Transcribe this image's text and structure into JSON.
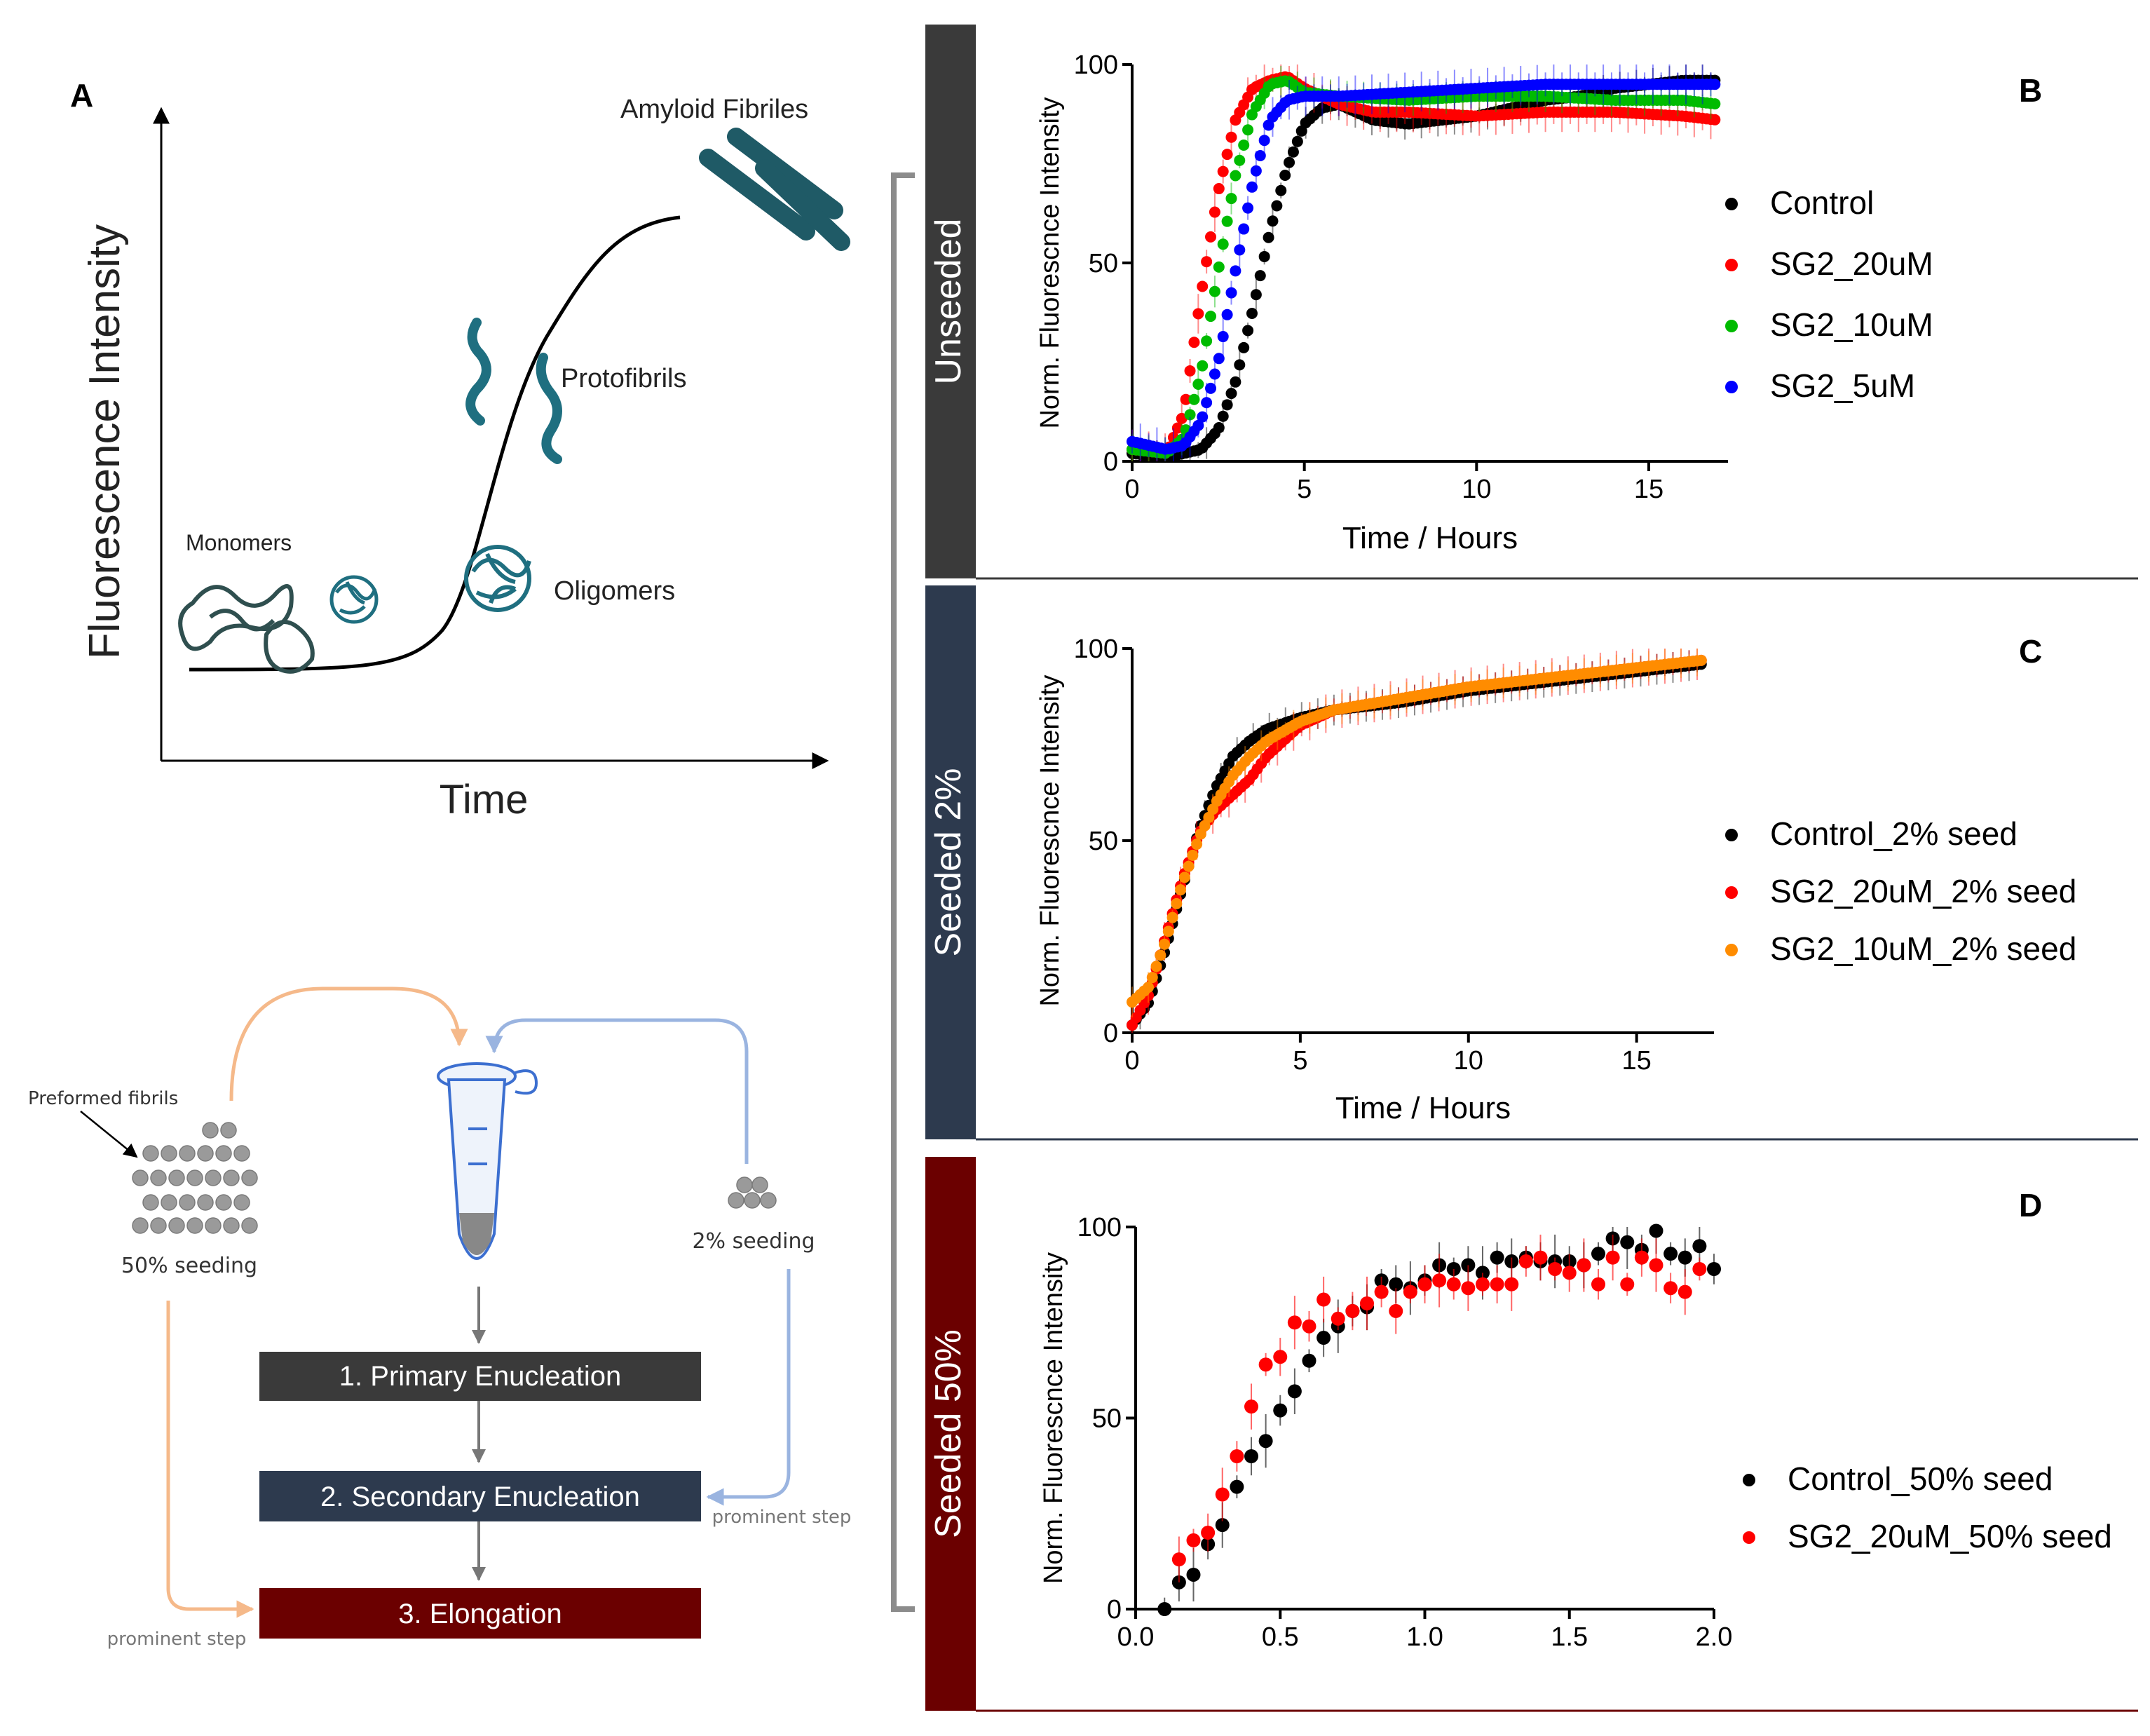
{
  "panels": {
    "A": {
      "letter": "A",
      "ylabel": "Fluorescence Intensity",
      "xlabel": "Time",
      "stages": [
        "Monomers",
        "Oligomers",
        "Protofibrils",
        "Amyloid Fibriles"
      ]
    },
    "B": {
      "letter": "B",
      "band_label": "Unseeded"
    },
    "C": {
      "letter": "C",
      "band_label": "Seeded 2%"
    },
    "D": {
      "letter": "D",
      "band_label": "Seeded 50%"
    }
  },
  "schematic": {
    "preformed_label": "Preformed fibrils",
    "seed50_label": "50% seeding",
    "seed2_label": "2% seeding",
    "steps": [
      "1. Primary Enucleation",
      "2. Secondary Enucleation",
      "3. Elongation"
    ],
    "prominent_label": "prominent step"
  },
  "colors": {
    "unseeded_band": "#3a3a3a",
    "seeded2_band": "#2d3a4e",
    "seeded50_band": "#6b0000",
    "step1": "#3a3a3a",
    "step2": "#2d3a4e",
    "step3": "#6b0000",
    "orange_arrow": "#f5b98a",
    "blue_arrow": "#9ab4e0",
    "teal": "#1f6f80"
  },
  "chart_data": [
    {
      "panel": "B",
      "type": "scatter",
      "xlabel": "Time / Hours",
      "ylabel": "Norm. Fluorescnce Intensity",
      "xlim": [
        0,
        17.3
      ],
      "ylim": [
        0,
        100
      ],
      "xticks": [
        0,
        5,
        10,
        15
      ],
      "yticks": [
        0,
        50,
        100
      ],
      "legend_position": "right",
      "series": [
        {
          "name": "Control",
          "color": "#000000",
          "x": [
            0,
            1,
            2,
            2.5,
            3,
            3.5,
            4,
            4.5,
            5,
            5.5,
            6,
            7,
            8,
            9,
            10,
            11,
            12,
            13,
            14,
            15,
            16,
            17
          ],
          "y": [
            2,
            1,
            3,
            8,
            20,
            38,
            58,
            74,
            85,
            89,
            90,
            86,
            85,
            86,
            87,
            89,
            91,
            92,
            94,
            95,
            96,
            96
          ]
        },
        {
          "name": "SG2_20uM",
          "color": "#ff0000",
          "x": [
            0,
            1,
            1.5,
            2,
            2.5,
            3,
            3.5,
            4,
            4.5,
            5,
            6,
            7,
            8,
            10,
            12,
            14,
            16,
            17
          ],
          "y": [
            3,
            2,
            12,
            42,
            68,
            86,
            94,
            96,
            97,
            94,
            90,
            88,
            88,
            87,
            88,
            88,
            87,
            86
          ]
        },
        {
          "name": "SG2_10uM",
          "color": "#00bb00",
          "x": [
            0,
            1,
            1.5,
            2,
            2.5,
            3,
            3.5,
            4,
            4.5,
            5,
            6,
            8,
            10,
            12,
            14,
            16,
            17
          ],
          "y": [
            3,
            2,
            6,
            22,
            48,
            72,
            88,
            95,
            96,
            93,
            92,
            91,
            92,
            92,
            91,
            91,
            90
          ]
        },
        {
          "name": "SG2_5uM",
          "color": "#0000ff",
          "x": [
            0,
            1,
            1.5,
            2,
            2.5,
            3,
            3.5,
            4,
            4.5,
            5,
            6,
            8,
            10,
            12,
            14,
            16,
            17
          ],
          "y": [
            5,
            3,
            4,
            10,
            25,
            48,
            70,
            86,
            91,
            92,
            92,
            93,
            94,
            95,
            95,
            95,
            95
          ]
        }
      ]
    },
    {
      "panel": "C",
      "type": "scatter",
      "xlabel": "Time / Hours",
      "ylabel": "Norm. Fluorescnce Intensity",
      "xlim": [
        0,
        17.3
      ],
      "ylim": [
        0,
        100
      ],
      "xticks": [
        0,
        5,
        10,
        15
      ],
      "yticks": [
        0,
        50,
        100
      ],
      "legend_position": "right",
      "series": [
        {
          "name": "Control_2% seed",
          "color": "#000000",
          "x": [
            0,
            0.5,
            1,
            1.5,
            2,
            2.5,
            3,
            3.5,
            4,
            5,
            6,
            8,
            10,
            12,
            14,
            16,
            17
          ],
          "y": [
            2,
            8,
            22,
            38,
            53,
            64,
            72,
            76,
            79,
            82,
            84,
            86,
            89,
            91,
            93,
            95,
            96
          ]
        },
        {
          "name": "SG2_20uM_2% seed",
          "color": "#ff0000",
          "x": [
            0,
            0.5,
            1,
            1.5,
            2,
            2.5,
            3,
            3.5,
            4,
            5,
            6,
            8,
            10,
            12,
            14,
            16,
            17
          ],
          "y": [
            2,
            10,
            25,
            40,
            52,
            58,
            62,
            66,
            72,
            80,
            84,
            87,
            90,
            92,
            94,
            96,
            97
          ]
        },
        {
          "name": "SG2_10uM_2% seed",
          "color": "#ff8c00",
          "x": [
            0,
            0.5,
            1,
            1.5,
            2,
            2.5,
            3,
            3.5,
            4,
            5,
            6,
            8,
            10,
            12,
            14,
            16,
            17
          ],
          "y": [
            8,
            12,
            24,
            39,
            51,
            60,
            67,
            72,
            76,
            81,
            84,
            87,
            90,
            92,
            94,
            96,
            97
          ]
        }
      ]
    },
    {
      "panel": "D",
      "type": "scatter",
      "xlabel": "",
      "ylabel": "Norm. Fluorescnce Intensity",
      "xlim": [
        0,
        2
      ],
      "ylim": [
        0,
        100
      ],
      "xticks": [
        0.0,
        0.5,
        1.0,
        1.5,
        2.0
      ],
      "yticks": [
        0,
        50,
        100
      ],
      "legend_position": "right",
      "series": [
        {
          "name": "Control_50% seed",
          "color": "#000000",
          "x": [
            0.1,
            0.15,
            0.2,
            0.25,
            0.3,
            0.35,
            0.4,
            0.45,
            0.5,
            0.55,
            0.6,
            0.65,
            0.7,
            0.75,
            0.8,
            0.85,
            0.9,
            0.95,
            1.0,
            1.05,
            1.1,
            1.15,
            1.2,
            1.25,
            1.3,
            1.35,
            1.4,
            1.45,
            1.5,
            1.55,
            1.6,
            1.65,
            1.7,
            1.75,
            1.8,
            1.85,
            1.9,
            1.95,
            2.0
          ],
          "y": [
            0,
            7,
            9,
            17,
            22,
            32,
            40,
            44,
            52,
            57,
            65,
            71,
            74,
            78,
            79,
            86,
            85,
            84,
            86,
            90,
            89,
            90,
            88,
            92,
            91,
            92,
            91,
            91,
            91,
            90,
            93,
            97,
            96,
            94,
            99,
            93,
            92,
            95,
            89
          ]
        },
        {
          "name": "SG2_20uM_50% seed",
          "color": "#ff0000",
          "x": [
            0.15,
            0.2,
            0.25,
            0.3,
            0.35,
            0.4,
            0.45,
            0.5,
            0.55,
            0.6,
            0.65,
            0.7,
            0.75,
            0.8,
            0.85,
            0.9,
            0.95,
            1.0,
            1.05,
            1.1,
            1.15,
            1.2,
            1.25,
            1.3,
            1.35,
            1.4,
            1.45,
            1.5,
            1.55,
            1.6,
            1.65,
            1.7,
            1.75,
            1.8,
            1.85,
            1.9,
            1.95
          ],
          "y": [
            13,
            18,
            20,
            30,
            40,
            53,
            64,
            66,
            75,
            74,
            81,
            76,
            78,
            80,
            83,
            78,
            83,
            85,
            86,
            85,
            84,
            85,
            85,
            85,
            91,
            92,
            89,
            88,
            90,
            85,
            92,
            85,
            92,
            90,
            84,
            83,
            89
          ]
        }
      ]
    }
  ]
}
